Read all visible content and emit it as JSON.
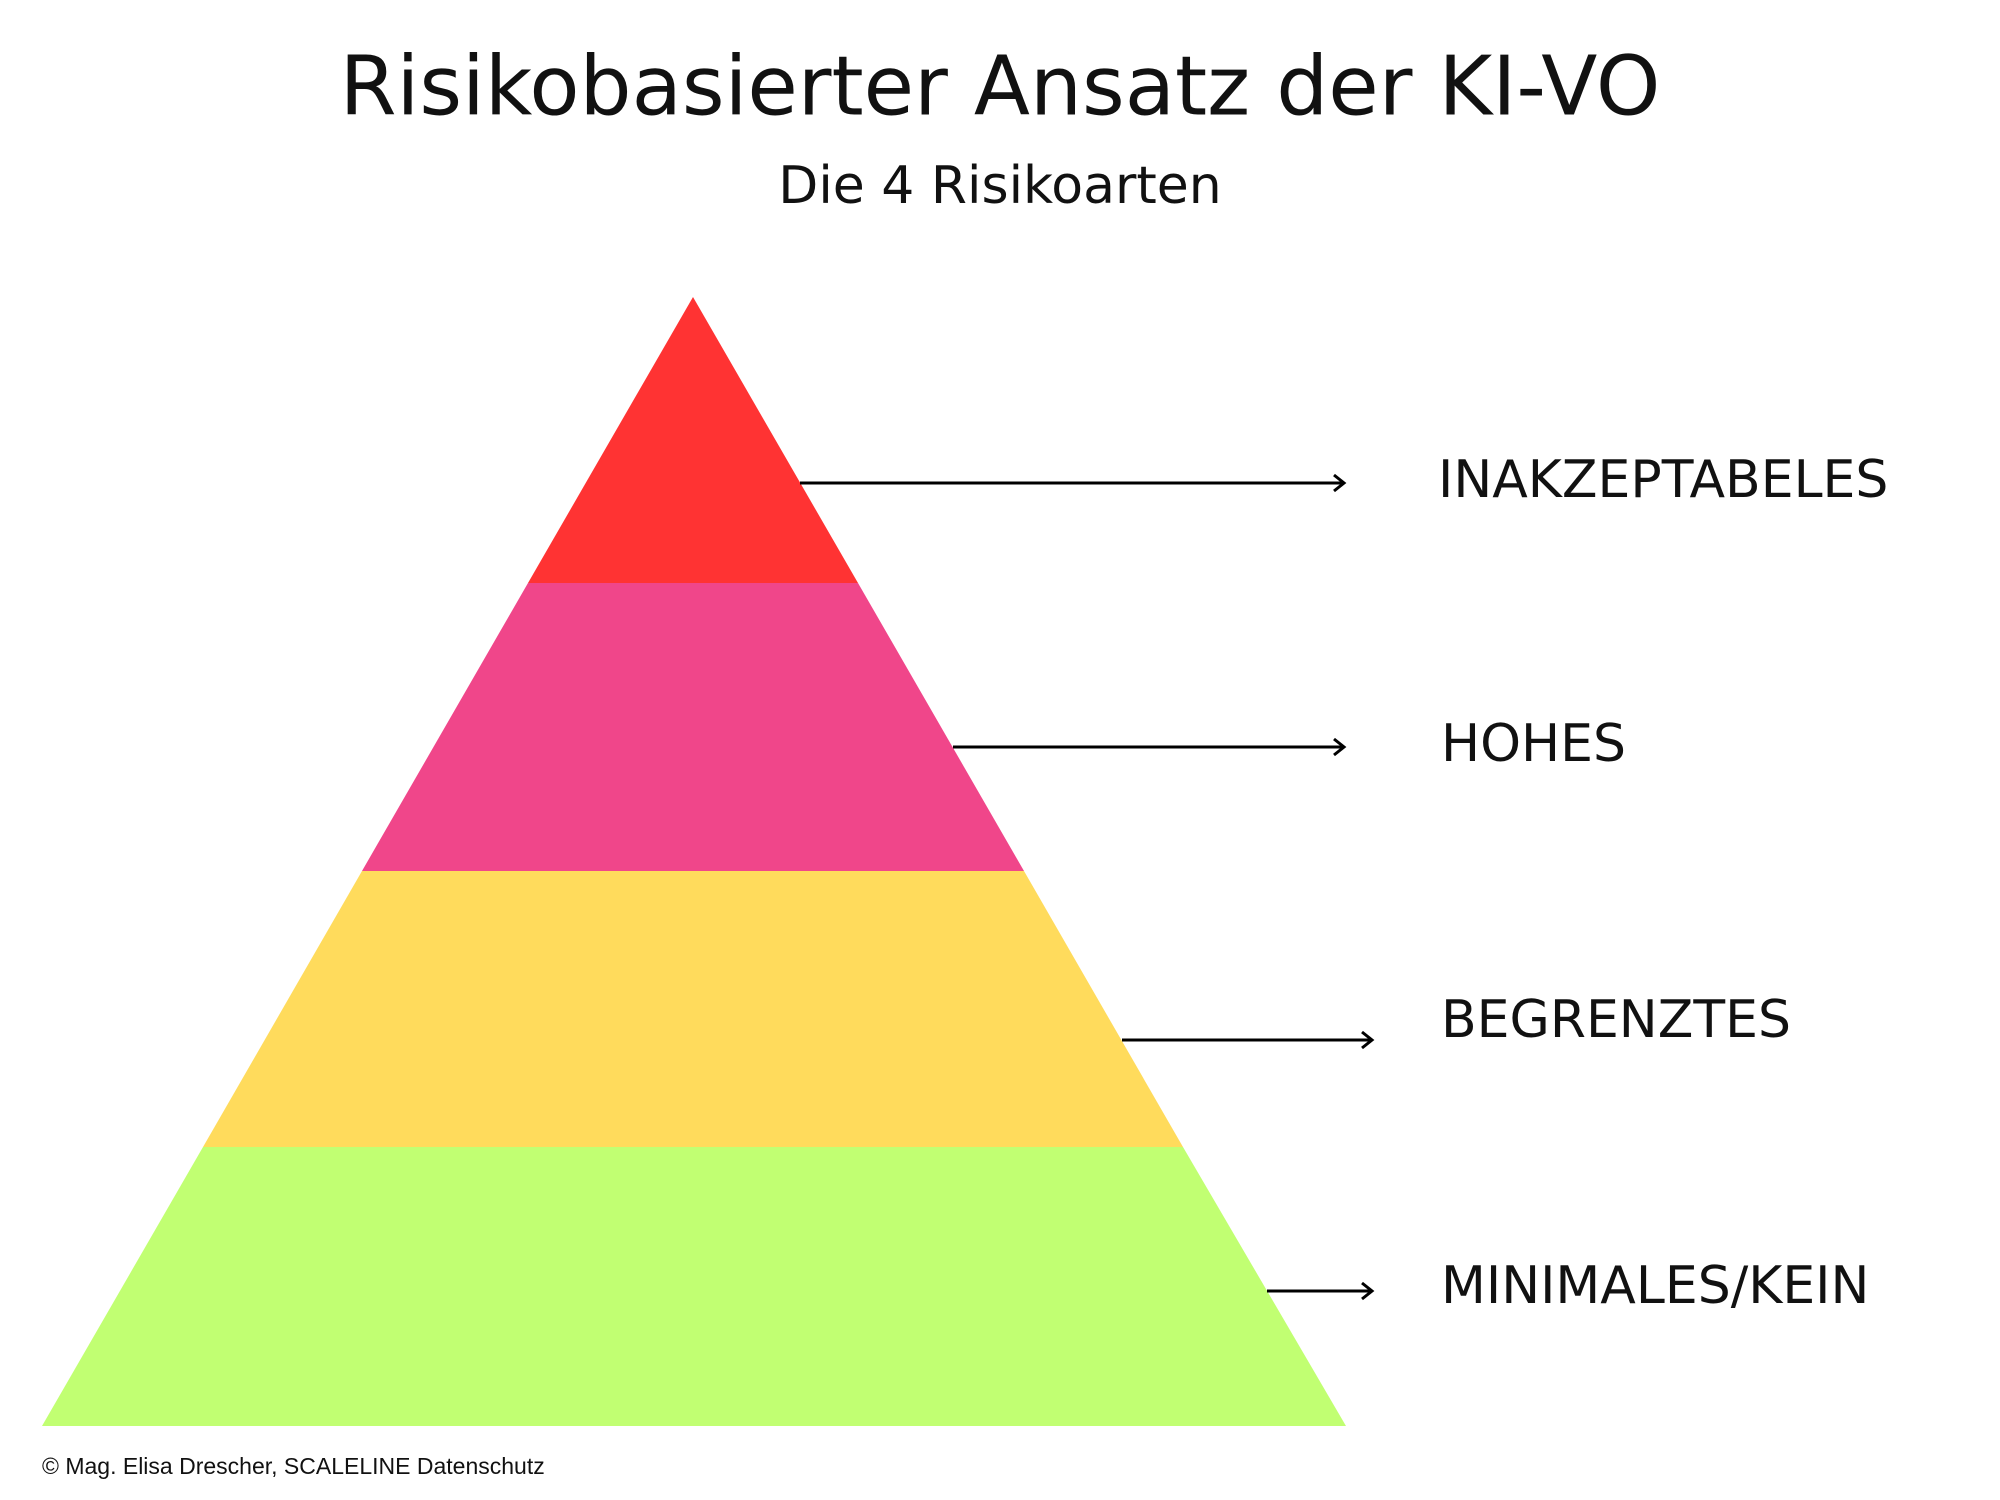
{
  "header": {
    "title": "Risikobasierter Ansatz der KI-VO",
    "subtitle": "Die 4 Risikoarten"
  },
  "levels": [
    {
      "label": "INAKZEPTABELES"
    },
    {
      "label": "HOHES"
    },
    {
      "label": "BEGRENZTES"
    },
    {
      "label": "MINIMALES/KEIN"
    }
  ],
  "footer": {
    "copyright": "© Mag. Elisa Drescher, SCALELINE Datenschutz"
  }
}
